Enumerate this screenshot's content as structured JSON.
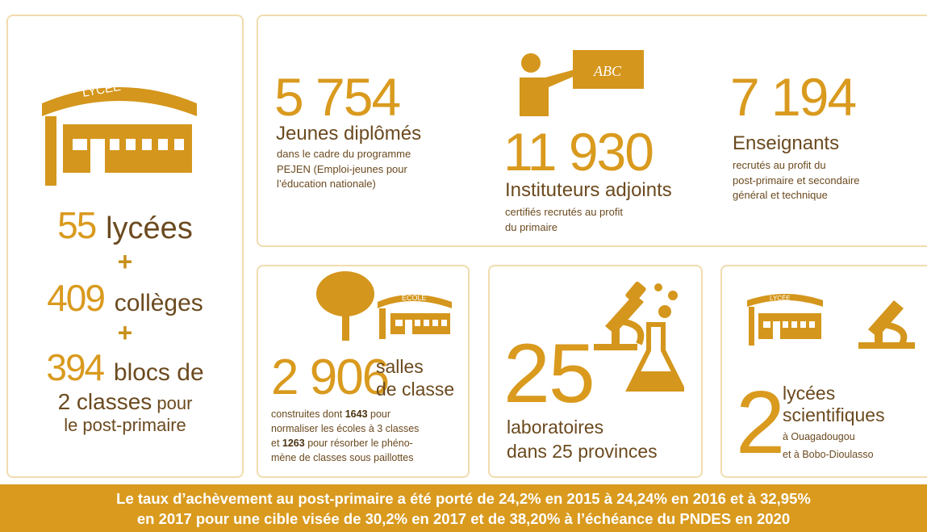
{
  "lycees_panel": {
    "icon_label": "LYCÉE",
    "stats": [
      {
        "number": "55",
        "text": "lycées"
      },
      {
        "number": "409",
        "text": "collèges"
      },
      {
        "number": "394",
        "text": "blocs de"
      }
    ],
    "plus": [
      "+",
      "+"
    ],
    "tail": [
      "2 classes",
      " pour",
      "le post-primaire"
    ]
  },
  "recruitment": [
    {
      "number": "5 754",
      "title": "Jeunes diplômés",
      "description": [
        "dans le cadre du programme",
        "PEJEN (Emploi-jeunes pour",
        "l’éducation nationale)"
      ]
    },
    {
      "board": "ABC",
      "number": "11 930",
      "title": "Instituteurs adjoints",
      "description": [
        "certifiés recrutés au profit",
        "du primaire"
      ]
    },
    {
      "number": "7 194",
      "title": "Enseignants",
      "description": [
        "recrutés au profit du",
        "post-primaire et secondaire",
        "général et technique"
      ]
    }
  ],
  "classrooms": {
    "school_sign": "ÉCOLE",
    "number": "2 906",
    "title": [
      "salles",
      "de classe"
    ],
    "description": [
      [
        "construites dont ",
        "1643",
        " pour"
      ],
      [
        "normaliser les écoles à 3 classes"
      ],
      [
        "et ",
        "1263",
        " pour résorber le phéno-"
      ],
      [
        "mène de classes sous paillottes"
      ]
    ]
  },
  "labs": {
    "number": "25",
    "title": [
      "laboratoires",
      "dans 25 provinces"
    ]
  },
  "science_lycees": {
    "icon_label": "LYCÉE",
    "number": "2",
    "title": [
      "lycées",
      "scientifiques"
    ],
    "description": [
      "à Ouagadougou",
      "et à Bobo-Dioulasso"
    ]
  },
  "banner": [
    "Le taux d’achèvement au post-primaire a été porté de 24,2% en 2015 à 24,24% en 2016 et à 32,95%",
    "en 2017 pour une cible visée de 30,2% en 2017 et de 38,20% à l’échéance du PNDES en 2020"
  ]
}
